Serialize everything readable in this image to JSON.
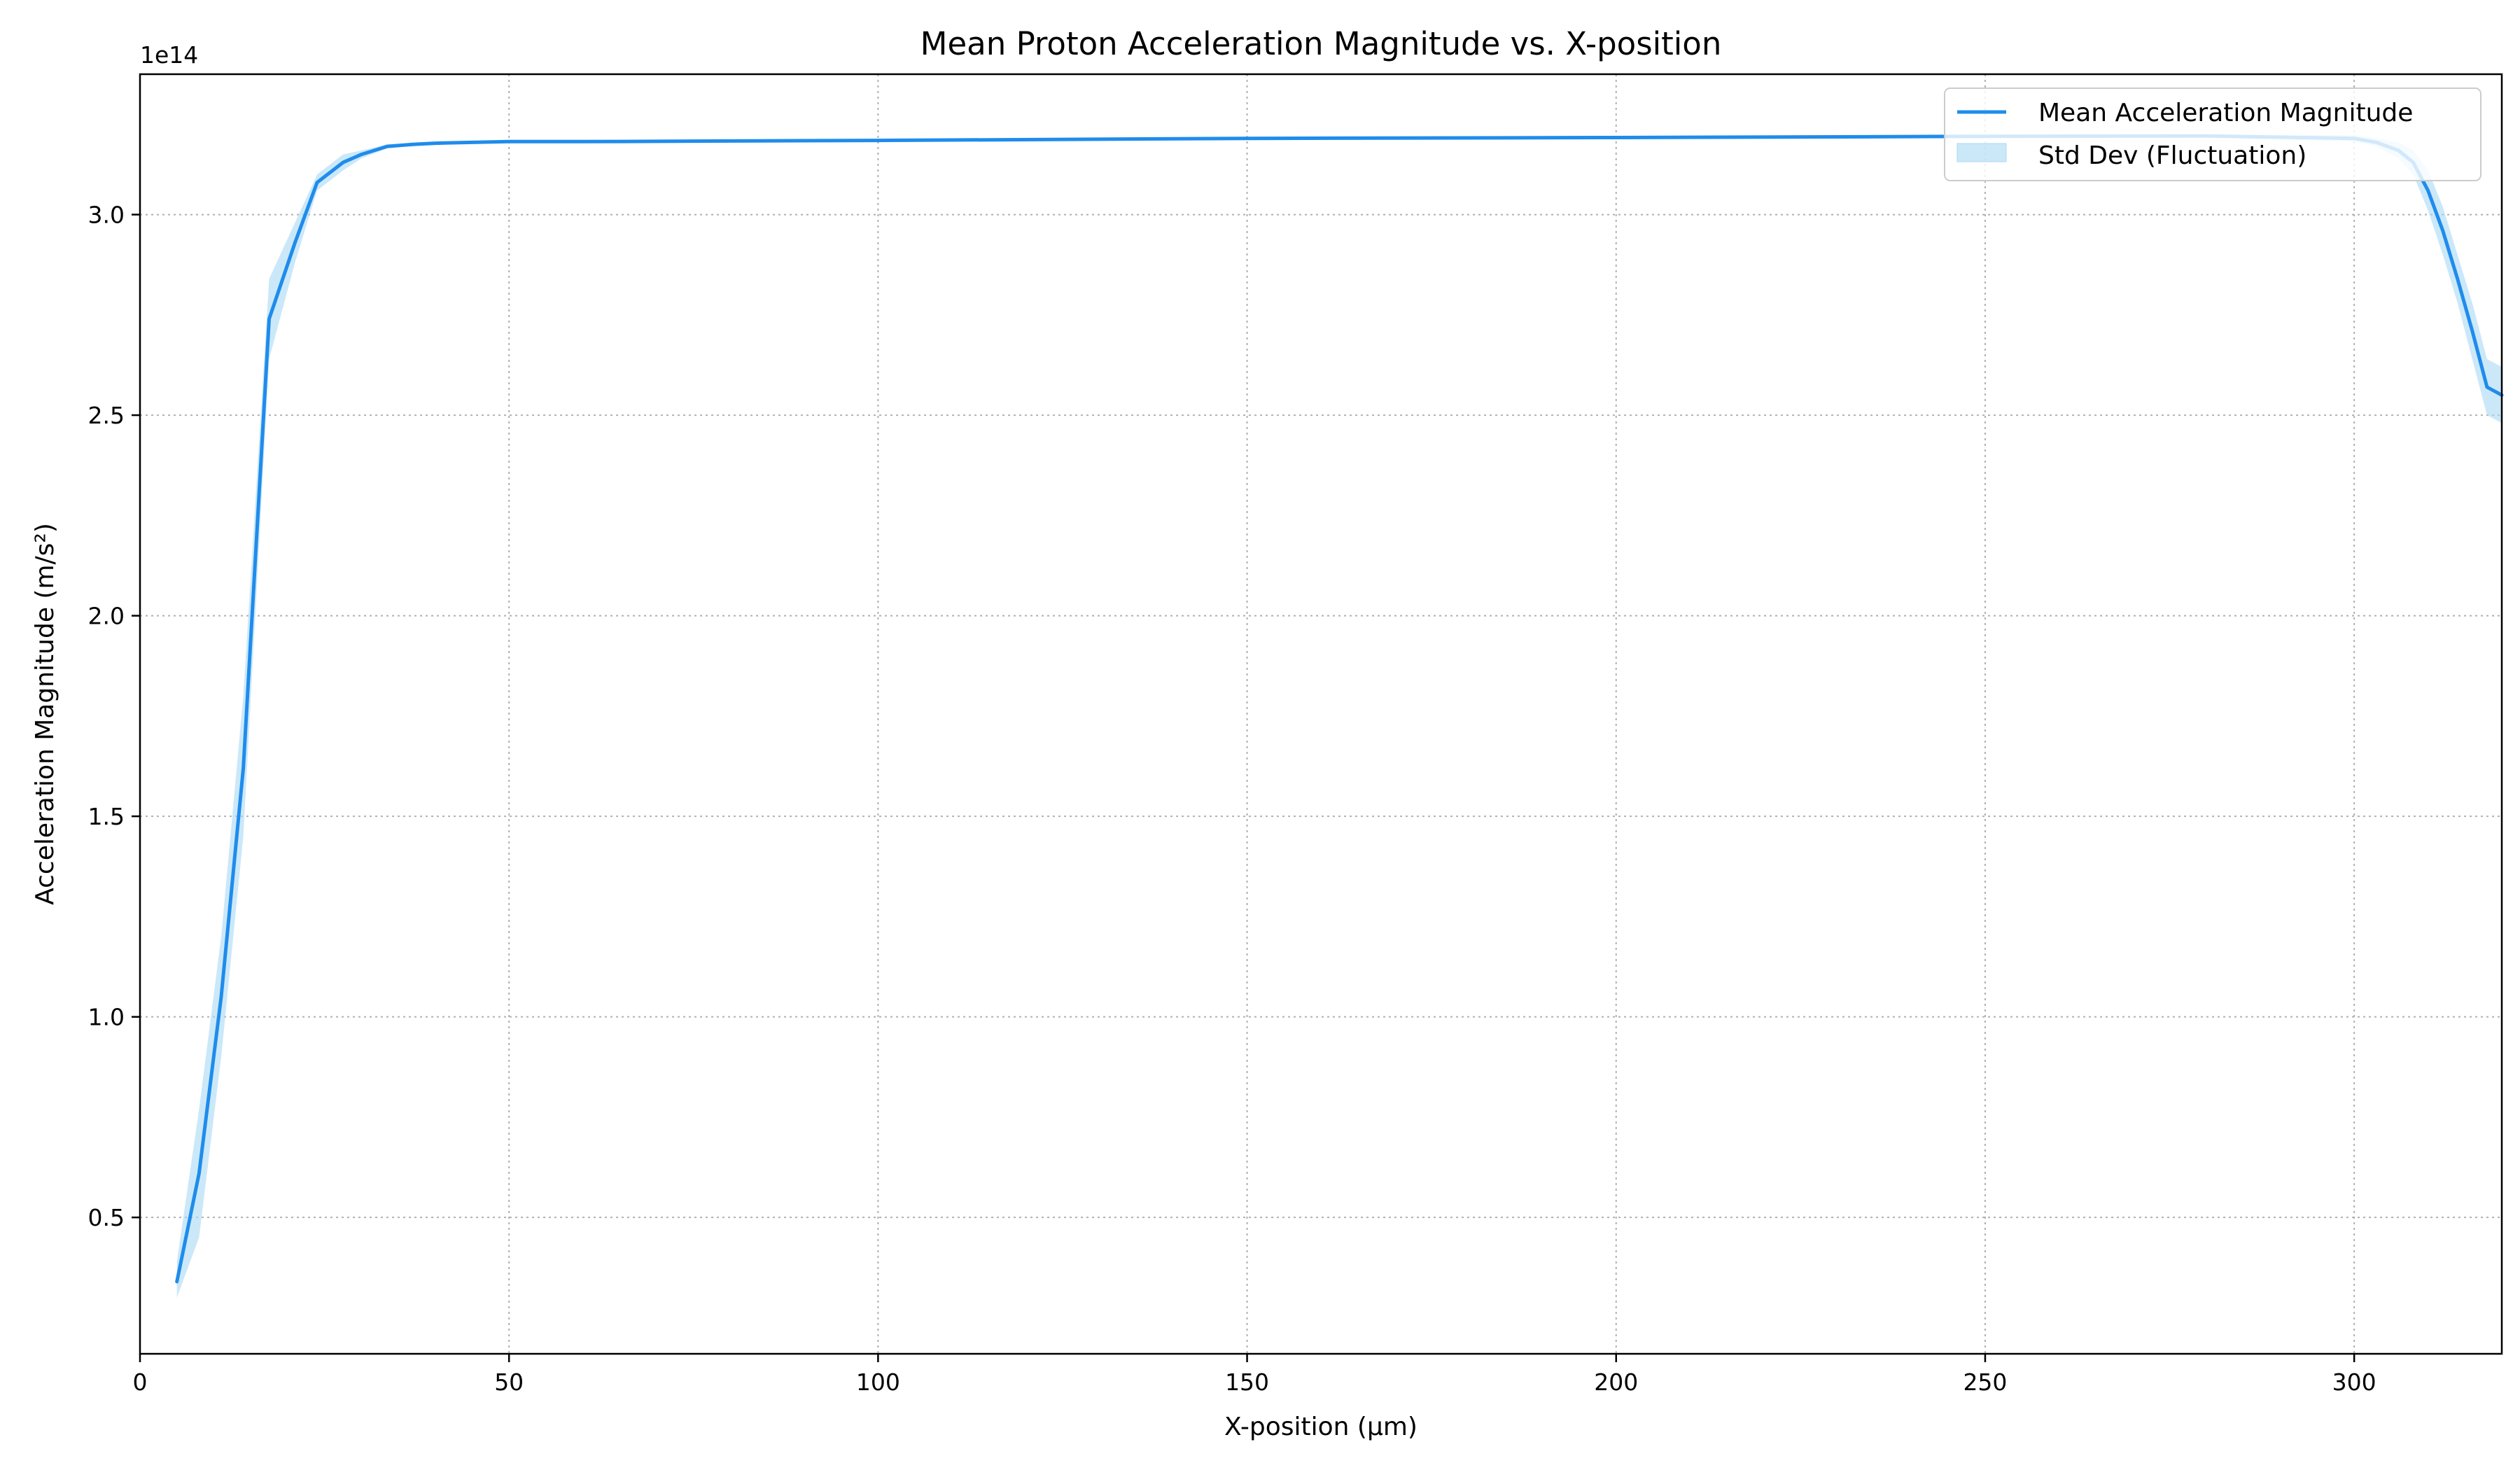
{
  "chart_data": {
    "type": "line",
    "title": "Mean Proton Acceleration Magnitude vs. X-position",
    "xlabel": "X-position (µm)",
    "ylabel": "Acceleration Magnitude (m/s²)",
    "y_offset_label": "1e14",
    "xlim": [
      0,
      320
    ],
    "ylim": [
      0.16,
      3.35
    ],
    "x_ticks": [
      0,
      50,
      100,
      150,
      200,
      250,
      300
    ],
    "x_tick_labels": [
      "0",
      "50",
      "100",
      "150",
      "200",
      "250",
      "300"
    ],
    "y_ticks": [
      0.5,
      1.0,
      1.5,
      2.0,
      2.5,
      3.0
    ],
    "y_tick_labels": [
      "0.5",
      "1.0",
      "1.5",
      "2.0",
      "2.5",
      "3.0"
    ],
    "grid": true,
    "legend_position": "top-right",
    "colors": {
      "line": "#1f8ceb",
      "band": "#a8d8f5"
    },
    "series": [
      {
        "name": "Mean Acceleration Magnitude",
        "style": "line",
        "x": [
          5,
          8,
          11,
          14,
          17.5,
          21,
          24,
          27.5,
          30,
          33.5,
          37,
          40,
          45,
          50,
          60,
          100,
          150,
          200,
          250,
          280,
          300,
          303,
          306,
          308,
          310,
          312,
          314,
          316,
          318,
          320
        ],
        "y": [
          0.34,
          0.61,
          1.05,
          1.62,
          2.74,
          2.93,
          3.08,
          3.13,
          3.15,
          3.17,
          3.175,
          3.178,
          3.18,
          3.182,
          3.182,
          3.185,
          3.19,
          3.192,
          3.195,
          3.196,
          3.19,
          3.18,
          3.16,
          3.13,
          3.06,
          2.96,
          2.84,
          2.71,
          2.57,
          2.55
        ]
      },
      {
        "name": "Std Dev (Fluctuation)",
        "style": "band",
        "x": [
          5,
          8,
          11,
          14,
          17.5,
          21,
          24,
          27.5,
          30,
          33.5,
          37,
          40,
          45,
          50,
          60,
          100,
          150,
          200,
          250,
          280,
          300,
          303,
          306,
          308,
          310,
          312,
          314,
          316,
          318,
          320
        ],
        "y_lower": [
          0.3,
          0.45,
          0.9,
          1.45,
          2.64,
          2.88,
          3.06,
          3.11,
          3.14,
          3.165,
          3.172,
          3.176,
          3.178,
          3.18,
          3.18,
          3.183,
          3.188,
          3.19,
          3.193,
          3.193,
          3.182,
          3.17,
          3.14,
          3.1,
          3.01,
          2.9,
          2.78,
          2.64,
          2.5,
          2.48
        ],
        "y_upper": [
          0.39,
          0.77,
          1.2,
          1.8,
          2.84,
          2.98,
          3.1,
          3.15,
          3.16,
          3.175,
          3.178,
          3.18,
          3.182,
          3.184,
          3.184,
          3.187,
          3.192,
          3.194,
          3.197,
          3.199,
          3.198,
          3.19,
          3.18,
          3.16,
          3.11,
          3.02,
          2.9,
          2.78,
          2.64,
          2.62
        ]
      }
    ]
  }
}
